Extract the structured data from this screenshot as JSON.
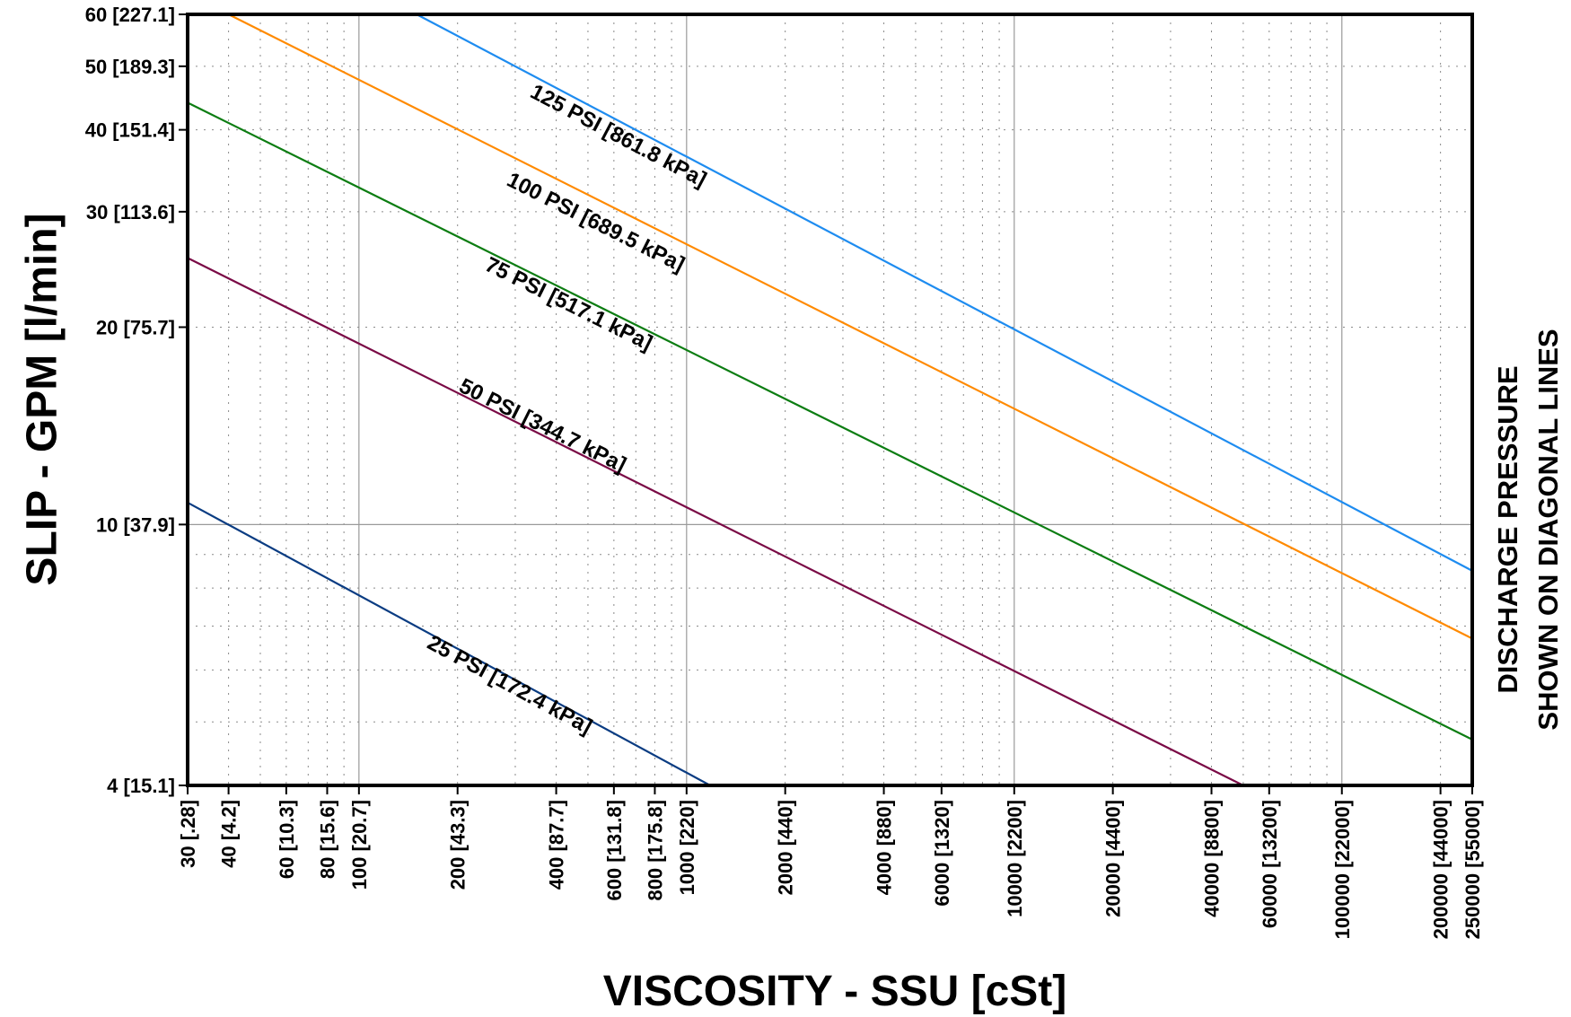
{
  "chart_data": {
    "type": "line",
    "x_scale": "log",
    "y_scale": "log",
    "xlabel": "VISCOSITY - SSU [cSt]",
    "ylabel": "SLIP - GPM [l/min]",
    "right_label_lines": [
      "DISCHARGE PRESSURE",
      "SHOWN ON DIAGONAL LINES"
    ],
    "xlim": [
      30,
      250000
    ],
    "ylim": [
      4,
      60
    ],
    "grid": true,
    "x_ticks": [
      {
        "value": 30,
        "label": "30 [.28]"
      },
      {
        "value": 40,
        "label": "40 [4.2]"
      },
      {
        "value": 60,
        "label": "60 [10.3]"
      },
      {
        "value": 80,
        "label": "80 [15.6]"
      },
      {
        "value": 100,
        "label": "100 [20.7]"
      },
      {
        "value": 200,
        "label": "200 [43.3]"
      },
      {
        "value": 400,
        "label": "400 [87.7]"
      },
      {
        "value": 600,
        "label": "600 [131.8]"
      },
      {
        "value": 800,
        "label": "800 [175.8]"
      },
      {
        "value": 1000,
        "label": "1000 [220]"
      },
      {
        "value": 2000,
        "label": "2000 [440]"
      },
      {
        "value": 4000,
        "label": "4000 [880]"
      },
      {
        "value": 6000,
        "label": "6000 [1320]"
      },
      {
        "value": 10000,
        "label": "10000 [2200]"
      },
      {
        "value": 20000,
        "label": "20000 [4400]"
      },
      {
        "value": 40000,
        "label": "40000 [8800]"
      },
      {
        "value": 60000,
        "label": "60000 [13200]"
      },
      {
        "value": 100000,
        "label": "100000 [22000]"
      },
      {
        "value": 200000,
        "label": "200000 [44000]"
      },
      {
        "value": 250000,
        "label": "250000 [55000]"
      }
    ],
    "y_ticks": [
      {
        "value": 4,
        "label": "4 [15.1]"
      },
      {
        "value": 10,
        "label": "10 [37.9]"
      },
      {
        "value": 20,
        "label": "20 [75.7]"
      },
      {
        "value": 30,
        "label": "30 [113.6]"
      },
      {
        "value": 40,
        "label": "40 [151.4]"
      },
      {
        "value": 50,
        "label": "50 [189.3]"
      },
      {
        "value": 60,
        "label": "60 [227.1]"
      }
    ],
    "series": [
      {
        "name": "125 PSI [861.8 kPa]",
        "color": "#1e8cf0",
        "points": [
          [
            150,
            60
          ],
          [
            250000,
            8.5
          ]
        ],
        "label_at": [
          330,
          45
        ]
      },
      {
        "name": "100 PSI [689.5 kPa]",
        "color": "#ff8a00",
        "points": [
          [
            40,
            60
          ],
          [
            250000,
            6.7
          ]
        ],
        "label_at": [
          280,
          33
        ]
      },
      {
        "name": "75 PSI [517.1 kPa]",
        "color": "#0c7d12",
        "points": [
          [
            30,
            44
          ],
          [
            250000,
            4.7
          ]
        ],
        "label_at": [
          240,
          24.5
        ]
      },
      {
        "name": "50 PSI [344.7 kPa]",
        "color": "#7a0a46",
        "points": [
          [
            30,
            25.5
          ],
          [
            50000,
            4
          ]
        ],
        "label_at": [
          200,
          16
        ]
      },
      {
        "name": "25 PSI [172.4 kPa]",
        "color": "#0a3c82",
        "points": [
          [
            30,
            10.8
          ],
          [
            1180,
            4
          ]
        ],
        "label_at": [
          160,
          6.5
        ]
      }
    ]
  }
}
